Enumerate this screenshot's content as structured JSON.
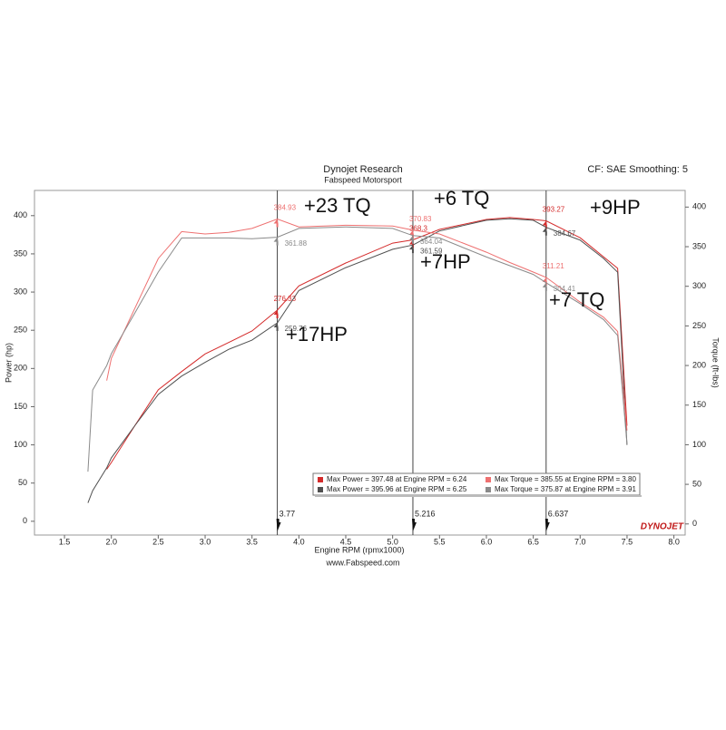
{
  "chart_data": {
    "type": "line",
    "title": "Dynojet Research",
    "subtitle": "Fabspeed Motorsport",
    "corner_note": "CF: SAE Smoothing: 5",
    "x_label": "Engine RPM (rpmx1000)",
    "y_label": "Power (hp)",
    "y2_label": "Torque (ft-lbs)",
    "footer": "www.Fabspeed.com",
    "logo": "DYNOJET",
    "xlim": [
      1.18,
      8.12
    ],
    "ylim": [
      -18,
      433
    ],
    "y2lim": [
      -14,
      421
    ],
    "xticks": [
      1.5,
      {
        "value": 2,
        "label": "2.0"
      },
      2.5,
      {
        "value": 3,
        "label": "3.0"
      },
      3.5,
      {
        "value": 4,
        "label": "4.0"
      },
      4.5,
      {
        "value": 5,
        "label": "5.0"
      },
      5.5,
      {
        "value": 6,
        "label": "6.0"
      },
      6.5,
      {
        "value": 7,
        "label": "7.0"
      },
      7.5,
      {
        "value": 8,
        "label": "8.0"
      }
    ],
    "yticks": [
      0,
      50,
      100,
      150,
      200,
      250,
      300,
      350,
      400
    ],
    "y2ticks": [
      0,
      50,
      100,
      150,
      200,
      250,
      300,
      350,
      400
    ],
    "x": [
      1.75,
      1.8,
      1.95,
      2.0,
      2.25,
      2.5,
      2.75,
      3.0,
      3.25,
      3.5,
      3.77,
      4.0,
      4.5,
      5.0,
      5.216,
      5.5,
      6.0,
      6.25,
      6.5,
      6.637,
      7.0,
      7.25,
      7.4,
      7.5
    ],
    "series": [
      {
        "name": "Max Power = 397.48 at Engine RPM = 6.24",
        "color": "#d42a2a",
        "values": [
          null,
          null,
          68,
          77,
          125,
          172,
          196,
          219,
          234,
          249,
          276.33,
          308,
          338,
          364,
          368.3,
          382,
          395,
          397.48,
          395,
          393.27,
          371,
          346,
          331,
          125
        ]
      },
      {
        "name": "Max Power = 395.96 at Engine RPM = 6.25",
        "color": "#505050",
        "values": [
          24,
          40,
          70,
          83,
          125,
          166,
          190,
          208,
          225,
          237,
          259.76,
          302,
          332,
          356,
          361.59,
          380,
          394,
          395.96,
          394,
          384.67,
          368,
          344,
          326,
          100
        ]
      },
      {
        "name": "Max Torque = 385.55 at Engine RPM = 3.80",
        "color": "#ee7070",
        "axis": "y2",
        "values": [
          null,
          null,
          181,
          209,
          272,
          335,
          369,
          366,
          368,
          373,
          384.93,
          375,
          377,
          376,
          370.83,
          366,
          343,
          330,
          318,
          311.21,
          280,
          261,
          243,
          118
        ]
      },
      {
        "name": "Max Torque = 375.87 at Engine RPM = 3.91",
        "color": "#8a8a8a",
        "axis": "y2",
        "values": [
          66,
          169,
          200,
          215,
          266,
          318,
          361,
          361,
          361,
          360,
          361.88,
          373,
          375,
          373,
          364.04,
          361,
          337,
          326,
          315,
          304.41,
          278,
          258,
          238,
          101
        ]
      }
    ],
    "cursors": [
      3.77,
      5.216,
      6.637
    ],
    "annotations": [
      "+23 TQ",
      "+6 TQ",
      "+9HP",
      "+7HP",
      "+7 TQ",
      "+17HP"
    ]
  }
}
